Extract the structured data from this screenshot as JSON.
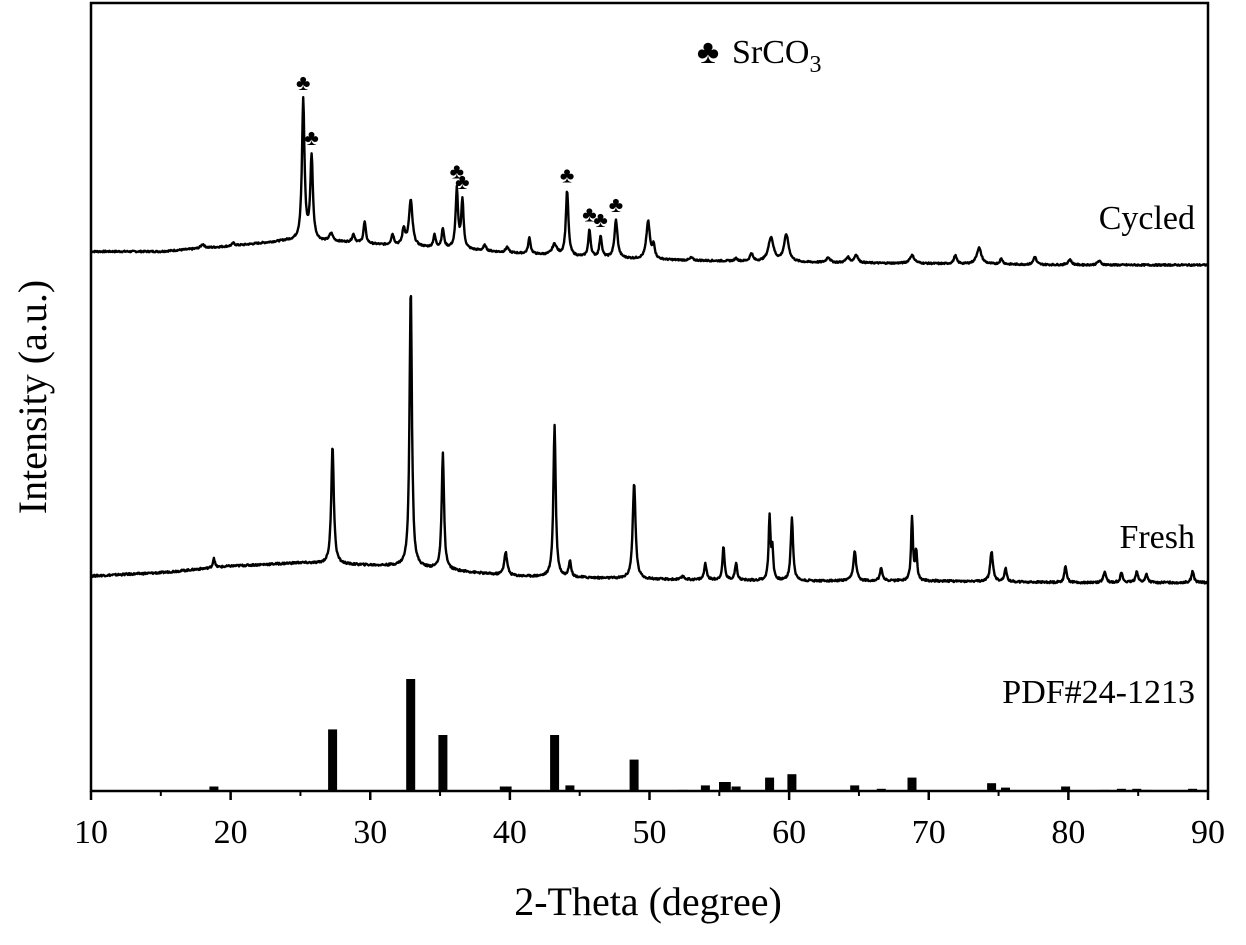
{
  "chart_data": {
    "type": "line",
    "xlabel": "2-Theta (degree)",
    "ylabel": "Intensity (a.u.)",
    "xlim": [
      10,
      90
    ],
    "xticks": [
      10,
      20,
      30,
      40,
      50,
      60,
      70,
      80,
      90
    ],
    "grid": false,
    "legend": {
      "symbol": "♣",
      "label_main": "SrCO",
      "label_sub": "3",
      "placement": "top-center"
    },
    "series": [
      {
        "name": "Cycled",
        "baseline": [
          [
            10,
            0.05
          ],
          [
            15,
            0.05
          ],
          [
            20,
            0.07
          ],
          [
            24,
            0.09
          ],
          [
            28,
            0.085
          ],
          [
            32,
            0.07
          ],
          [
            36,
            0.06
          ],
          [
            40,
            0.045
          ],
          [
            45,
            0.03
          ],
          [
            50,
            0.02
          ],
          [
            55,
            0.015
          ],
          [
            60,
            0.01
          ],
          [
            70,
            0.005
          ],
          [
            80,
            0.0
          ],
          [
            90,
            0.0
          ]
        ],
        "peaks": [
          [
            18.0,
            0.015,
            0.15
          ],
          [
            20.2,
            0.01,
            0.12
          ],
          [
            25.2,
            0.52,
            0.11
          ],
          [
            25.8,
            0.31,
            0.11
          ],
          [
            27.2,
            0.03,
            0.15
          ],
          [
            28.8,
            0.03,
            0.12
          ],
          [
            29.6,
            0.08,
            0.1
          ],
          [
            31.6,
            0.04,
            0.12
          ],
          [
            32.4,
            0.06,
            0.12
          ],
          [
            32.9,
            0.17,
            0.15
          ],
          [
            34.6,
            0.045,
            0.1
          ],
          [
            35.2,
            0.07,
            0.1
          ],
          [
            36.2,
            0.22,
            0.1
          ],
          [
            36.6,
            0.18,
            0.1
          ],
          [
            38.2,
            0.02,
            0.12
          ],
          [
            39.8,
            0.02,
            0.12
          ],
          [
            41.4,
            0.06,
            0.1
          ],
          [
            43.2,
            0.04,
            0.2
          ],
          [
            44.1,
            0.24,
            0.11
          ],
          [
            45.7,
            0.1,
            0.1
          ],
          [
            46.5,
            0.08,
            0.1
          ],
          [
            47.6,
            0.14,
            0.13
          ],
          [
            49.9,
            0.14,
            0.15
          ],
          [
            50.3,
            0.05,
            0.1
          ],
          [
            53.0,
            0.01,
            0.12
          ],
          [
            56.2,
            0.01,
            0.12
          ],
          [
            57.3,
            0.03,
            0.12
          ],
          [
            58.7,
            0.09,
            0.22
          ],
          [
            59.8,
            0.1,
            0.2
          ],
          [
            62.8,
            0.02,
            0.15
          ],
          [
            64.2,
            0.02,
            0.15
          ],
          [
            64.8,
            0.03,
            0.15
          ],
          [
            68.8,
            0.03,
            0.2
          ],
          [
            71.9,
            0.03,
            0.12
          ],
          [
            73.6,
            0.06,
            0.2
          ],
          [
            75.2,
            0.02,
            0.12
          ],
          [
            77.6,
            0.03,
            0.12
          ],
          [
            80.1,
            0.02,
            0.15
          ],
          [
            82.2,
            0.015,
            0.15
          ]
        ]
      },
      {
        "name": "Fresh",
        "baseline": [
          [
            10,
            0.0
          ],
          [
            15,
            0.01
          ],
          [
            20,
            0.03
          ],
          [
            25,
            0.04
          ],
          [
            28,
            0.035
          ],
          [
            32,
            0.03
          ],
          [
            35,
            0.02
          ],
          [
            40,
            0.0
          ],
          [
            45,
            -0.005
          ],
          [
            50,
            -0.01
          ],
          [
            60,
            -0.015
          ],
          [
            70,
            -0.015
          ],
          [
            80,
            -0.02
          ],
          [
            90,
            -0.02
          ]
        ],
        "peaks": [
          [
            18.8,
            0.03,
            0.08
          ],
          [
            27.3,
            0.36,
            0.11
          ],
          [
            32.9,
            0.85,
            0.1
          ],
          [
            35.2,
            0.35,
            0.1
          ],
          [
            39.7,
            0.07,
            0.13
          ],
          [
            43.2,
            0.46,
            0.1
          ],
          [
            44.3,
            0.05,
            0.1
          ],
          [
            48.9,
            0.29,
            0.12
          ],
          [
            52.4,
            0.01,
            0.12
          ],
          [
            54.0,
            0.05,
            0.1
          ],
          [
            55.3,
            0.1,
            0.09
          ],
          [
            56.2,
            0.05,
            0.1
          ],
          [
            58.6,
            0.19,
            0.08
          ],
          [
            58.8,
            0.09,
            0.08
          ],
          [
            60.2,
            0.19,
            0.1
          ],
          [
            64.7,
            0.09,
            0.12
          ],
          [
            66.6,
            0.04,
            0.1
          ],
          [
            68.8,
            0.19,
            0.08
          ],
          [
            69.1,
            0.09,
            0.08
          ],
          [
            74.5,
            0.09,
            0.12
          ],
          [
            75.5,
            0.04,
            0.1
          ],
          [
            79.8,
            0.05,
            0.1
          ],
          [
            82.6,
            0.03,
            0.12
          ],
          [
            83.8,
            0.03,
            0.1
          ],
          [
            84.9,
            0.035,
            0.1
          ],
          [
            85.6,
            0.025,
            0.1
          ],
          [
            88.9,
            0.035,
            0.1
          ]
        ]
      }
    ],
    "reference": {
      "name": "PDF#24-1213",
      "sticks": [
        [
          18.8,
          4
        ],
        [
          27.3,
          55
        ],
        [
          32.9,
          100
        ],
        [
          35.2,
          50
        ],
        [
          39.6,
          4
        ],
        [
          39.8,
          4
        ],
        [
          43.2,
          50
        ],
        [
          44.3,
          5
        ],
        [
          48.9,
          28
        ],
        [
          52.4,
          1
        ],
        [
          54.0,
          5
        ],
        [
          55.3,
          8
        ],
        [
          55.5,
          8
        ],
        [
          56.2,
          4
        ],
        [
          58.6,
          12
        ],
        [
          60.2,
          15
        ],
        [
          64.7,
          5
        ],
        [
          66.6,
          2
        ],
        [
          68.8,
          12
        ],
        [
          74.5,
          7
        ],
        [
          75.5,
          3
        ],
        [
          79.8,
          4
        ],
        [
          82.6,
          1
        ],
        [
          83.8,
          2
        ],
        [
          84.9,
          2
        ],
        [
          85.6,
          1
        ],
        [
          88.9,
          2
        ]
      ]
    },
    "srco3_markers": [
      25.2,
      25.8,
      36.2,
      36.6,
      44.1,
      45.7,
      46.5,
      47.6
    ]
  }
}
